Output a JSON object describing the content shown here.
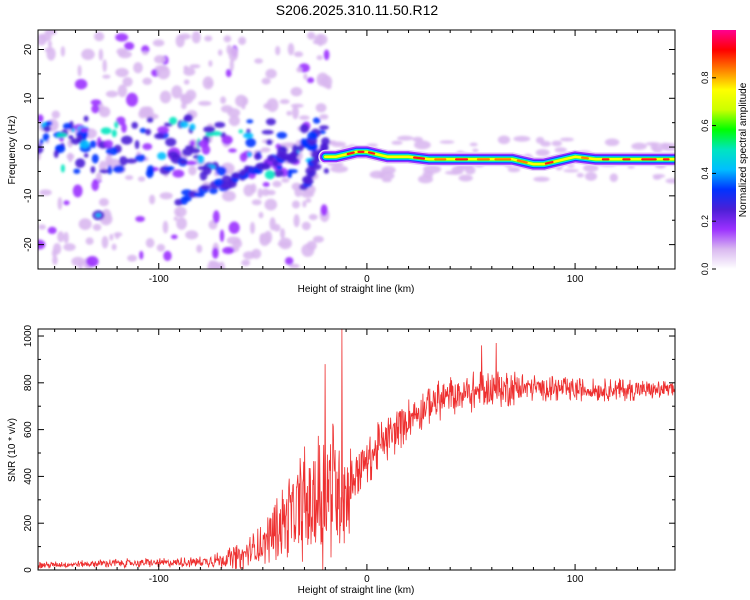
{
  "figure_title": "S206.2025.310.11.50.R12",
  "chart_data": [
    {
      "type": "heatmap",
      "name": "spectrogram",
      "xlabel": "Height of straight line (km)",
      "ylabel": "Frequency (Hz)",
      "xlim": [
        -158,
        148
      ],
      "ylim": [
        -25,
        24
      ],
      "xticks": [
        -100,
        0,
        100
      ],
      "yticks": [
        -20,
        -10,
        0,
        10,
        20
      ],
      "colorbar": {
        "label": "Normalized spectral amplitude",
        "range": [
          0,
          1
        ],
        "ticks": [
          0.0,
          0.2,
          0.4,
          0.6,
          0.8
        ],
        "stops": [
          "#ffffff",
          "#d9b8f0",
          "#9b30ff",
          "#4b1fd6",
          "#0033ff",
          "#00bfff",
          "#00e5c0",
          "#00ff00",
          "#ccff00",
          "#ffff00",
          "#ff8000",
          "#ff0000",
          "#ff0090"
        ]
      },
      "main_trace": [
        [
          -20,
          -2
        ],
        [
          -15,
          -2
        ],
        [
          -10,
          -1.5
        ],
        [
          -5,
          -1
        ],
        [
          0,
          -1
        ],
        [
          5,
          -1.5
        ],
        [
          10,
          -2
        ],
        [
          20,
          -2
        ],
        [
          30,
          -2.5
        ],
        [
          40,
          -2.5
        ],
        [
          50,
          -2.5
        ],
        [
          60,
          -2.5
        ],
        [
          70,
          -2.5
        ],
        [
          80,
          -3.5
        ],
        [
          85,
          -3.5
        ],
        [
          90,
          -3
        ],
        [
          100,
          -2
        ],
        [
          110,
          -2.5
        ],
        [
          120,
          -2.5
        ],
        [
          130,
          -2.5
        ],
        [
          140,
          -2.5
        ],
        [
          148,
          -2.5
        ]
      ],
      "scatter_ridges": [
        [
          [
            -90,
            -11
          ],
          [
            -80,
            -9
          ],
          [
            -65,
            -7
          ],
          [
            -55,
            -5
          ],
          [
            -45,
            -3
          ],
          [
            -35,
            -1
          ]
        ],
        [
          [
            -70,
            -8
          ],
          [
            -60,
            -6
          ],
          [
            -50,
            -4
          ],
          [
            -40,
            -2
          ],
          [
            -30,
            0
          ],
          [
            -25,
            2
          ]
        ],
        [
          [
            -30,
            -8
          ],
          [
            -27,
            -5
          ],
          [
            -24,
            -2
          ],
          [
            -20,
            1
          ]
        ]
      ],
      "isolated_blob": [
        -129,
        -14
      ]
    },
    {
      "type": "line",
      "name": "snr",
      "xlabel": "Height of straight line (km)",
      "ylabel": "SNR (10 * v/v)",
      "xlim": [
        -158,
        148
      ],
      "ylim": [
        0,
        1030
      ],
      "xticks": [
        -100,
        0,
        100
      ],
      "yticks": [
        0,
        200,
        400,
        600,
        800,
        1000
      ],
      "line_color": "#ee3030",
      "envelope": {
        "x": [
          -158,
          -140,
          -120,
          -100,
          -80,
          -70,
          -60,
          -50,
          -45,
          -40,
          -35,
          -30,
          -25,
          -20,
          -15,
          -10,
          -5,
          0,
          5,
          10,
          15,
          20,
          25,
          30,
          40,
          50,
          60,
          70,
          80,
          100,
          120,
          148
        ],
        "mean": [
          20,
          25,
          30,
          30,
          35,
          45,
          60,
          110,
          160,
          210,
          250,
          280,
          290,
          320,
          360,
          330,
          420,
          470,
          520,
          560,
          600,
          650,
          680,
          710,
          740,
          760,
          770,
          780,
          780,
          770,
          770,
          770
        ],
        "spread": [
          15,
          15,
          20,
          20,
          25,
          35,
          60,
          90,
          130,
          160,
          200,
          260,
          300,
          320,
          300,
          260,
          120,
          110,
          110,
          100,
          100,
          90,
          90,
          90,
          90,
          90,
          90,
          80,
          60,
          50,
          50,
          40
        ]
      },
      "spikes": [
        {
          "x": -20,
          "y": 880
        },
        {
          "x": -12,
          "y": 1030
        },
        {
          "x": 55,
          "y": 960
        },
        {
          "x": 62,
          "y": 970
        }
      ]
    }
  ]
}
